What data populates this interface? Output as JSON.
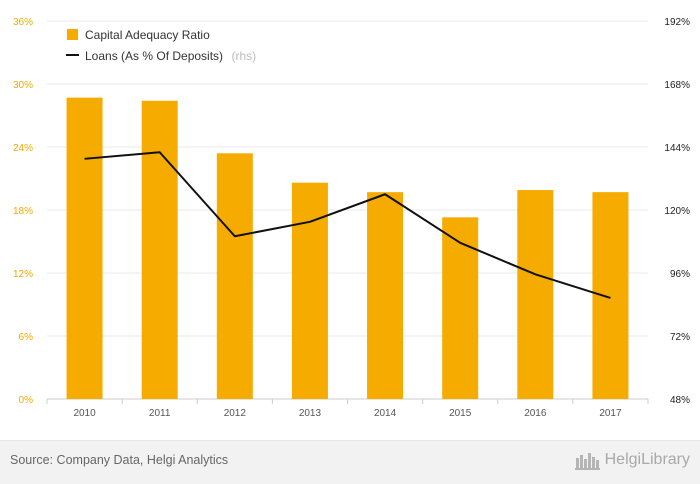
{
  "chart_data": {
    "type": "bar+line",
    "categories": [
      "2010",
      "2011",
      "2012",
      "2013",
      "2014",
      "2015",
      "2016",
      "2017"
    ],
    "series": [
      {
        "name": "Capital Adequacy Ratio",
        "type": "bar",
        "axis": "left",
        "color": "#f5ab00",
        "values": [
          28.7,
          28.4,
          23.4,
          20.6,
          19.7,
          17.3,
          19.9,
          19.7
        ]
      },
      {
        "name": "Loans (As % Of Deposits)",
        "type": "line",
        "axis": "right",
        "axis_note": "(rhs)",
        "color": "#111111",
        "values": [
          139.5,
          142.0,
          110.0,
          115.5,
          126.0,
          107.5,
          95.5,
          86.5
        ]
      }
    ],
    "y_left": {
      "min": 0,
      "max": 36,
      "ticks": [
        "0%",
        "6%",
        "12%",
        "18%",
        "24%",
        "30%",
        "36%"
      ]
    },
    "y_right": {
      "min": 48,
      "max": 192,
      "ticks": [
        "48%",
        "72%",
        "96%",
        "120%",
        "144%",
        "168%",
        "192%"
      ]
    },
    "grid": true,
    "legend_position": "top-left"
  },
  "footer": {
    "source": "Source: Company Data, Helgi Analytics",
    "brand": "HelgiLibrary"
  }
}
